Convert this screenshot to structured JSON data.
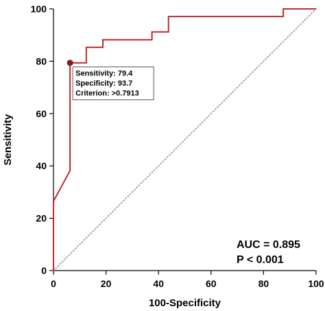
{
  "chart_data": {
    "type": "line",
    "title": "",
    "xlabel": "100-Specificity",
    "ylabel": "Sensitivity",
    "xlim": [
      0,
      100
    ],
    "ylim": [
      0,
      100
    ],
    "x_ticks": [
      0,
      20,
      40,
      60,
      80,
      100
    ],
    "y_ticks": [
      0,
      20,
      40,
      60,
      80,
      100
    ],
    "grid": false,
    "series": [
      {
        "color": "#c0282d",
        "x": [
          0,
          0,
          6.3,
          6.3,
          12.5,
          12.5,
          18.8,
          18.8,
          37.5,
          37.5,
          43.8,
          43.8,
          87.5,
          87.5,
          100
        ],
        "y": [
          0,
          26.5,
          38.2,
          79.4,
          79.4,
          85.3,
          85.3,
          88.2,
          88.2,
          91.2,
          91.2,
          97.1,
          97.1,
          100,
          100
        ]
      }
    ],
    "reference_line": {
      "x": [
        0,
        100
      ],
      "y": [
        0,
        100
      ],
      "color": "#888888",
      "style": "dotted"
    },
    "highlight_point": {
      "x": 6.3,
      "y": 79.4,
      "color": "#8b1a1a"
    },
    "annotation": {
      "lines": [
        "Sensitivity: 79.4",
        "Specificity: 93.7",
        "Criterion: >0.7913"
      ]
    },
    "stats": {
      "auc": "AUC = 0.895",
      "p": "P < 0.001"
    }
  }
}
